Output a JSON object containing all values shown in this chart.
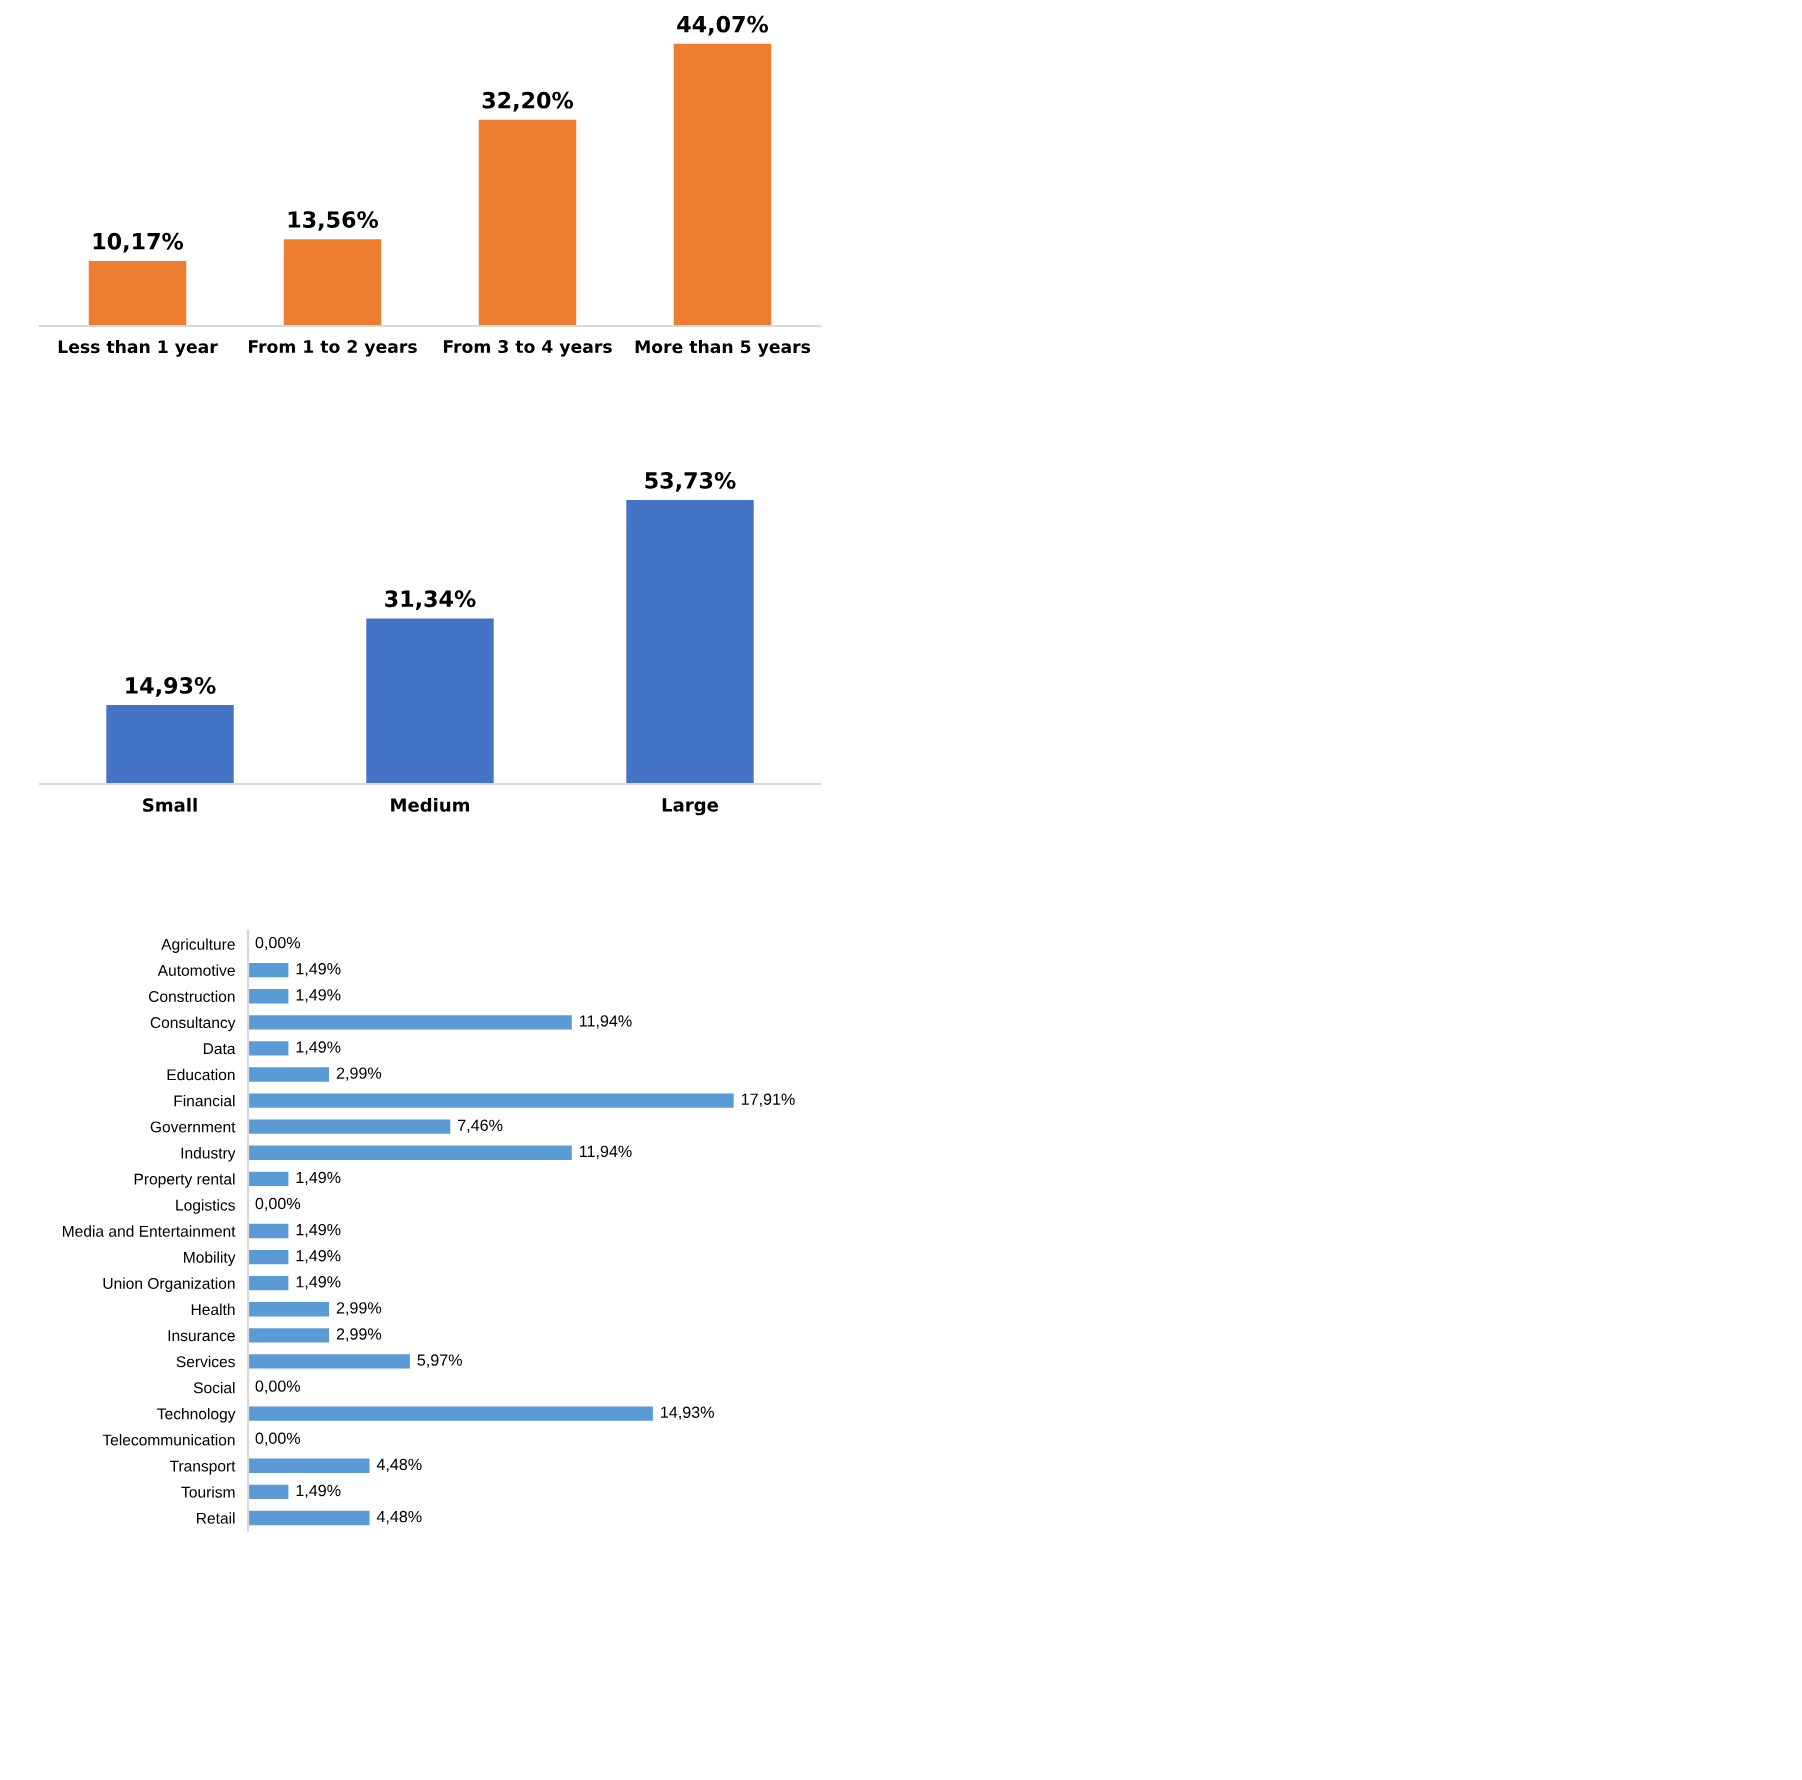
{
  "chart_data": [
    {
      "type": "bar",
      "categories": [
        "Less than 1 year",
        "From 1 to 2 years",
        "From 3 to 4 years",
        "More than 5 years"
      ],
      "values": [
        10.17,
        13.56,
        32.2,
        44.07
      ],
      "value_labels": [
        "10,17%",
        "13,56%",
        "32,20%",
        "44,07%"
      ],
      "color": "#ed7d31",
      "tick_labels": "x"
    },
    {
      "type": "bar",
      "categories": [
        "Small",
        "Medium",
        "Large"
      ],
      "values": [
        14.93,
        31.34,
        53.73
      ],
      "value_labels": [
        "14,93%",
        "31,34%",
        "53,73%"
      ],
      "color": "#4472c4",
      "tick_labels": "x"
    },
    {
      "type": "bar",
      "orientation": "horizontal",
      "categories": [
        "Agriculture",
        "Automotive",
        "Construction",
        "Consultancy",
        "Data",
        "Education",
        "Financial",
        "Government",
        "Industry",
        "Property rental",
        "Logistics",
        "Media and Entertainment",
        "Mobility",
        "Union Organization",
        "Health",
        "Insurance",
        "Services",
        "Social",
        "Technology",
        "Telecommunication",
        "Transport",
        "Tourism",
        "Retail"
      ],
      "values": [
        0.0,
        1.49,
        1.49,
        11.94,
        1.49,
        2.99,
        17.91,
        7.46,
        11.94,
        1.49,
        0.0,
        1.49,
        1.49,
        1.49,
        2.99,
        2.99,
        5.97,
        0.0,
        14.93,
        0.0,
        4.48,
        1.49,
        4.48
      ],
      "value_labels": [
        "0,00%",
        "1,49%",
        "1,49%",
        "11,94%",
        "1,49%",
        "2,99%",
        "17,91%",
        "7,46%",
        "11,94%",
        "1,49%",
        "0,00%",
        "1,49%",
        "1,49%",
        "1,49%",
        "2,99%",
        "2,99%",
        "5,97%",
        "0,00%",
        "14,93%",
        "0,00%",
        "4,48%",
        "1,49%",
        "4,48%"
      ],
      "color": "#5b9bd5",
      "tick_labels": "y"
    }
  ]
}
